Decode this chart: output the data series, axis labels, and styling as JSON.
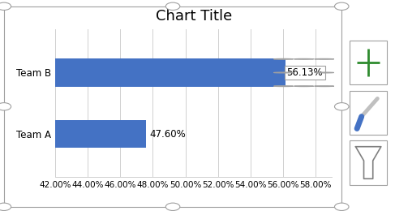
{
  "title": "Chart Title",
  "categories": [
    "Team A",
    "Team B"
  ],
  "values": [
    0.476,
    0.5613
  ],
  "labels": [
    "47.60%",
    "56.13%"
  ],
  "bar_color": "#4472C4",
  "xmin": 0.42,
  "xmax": 0.59,
  "xticks": [
    0.42,
    0.44,
    0.46,
    0.48,
    0.5,
    0.52,
    0.54,
    0.56,
    0.58
  ],
  "xtick_labels": [
    "42.00%",
    "44.00%",
    "46.00%",
    "48.00%",
    "50.00%",
    "52.00%",
    "54.00%",
    "56.00%",
    "58.00%"
  ],
  "background_color": "#ffffff",
  "grid_color": "#d0d0d0",
  "border_color": "#a0a0a0",
  "title_fontsize": 13,
  "label_fontsize": 8.5,
  "tick_fontsize": 7.5,
  "bar_height": 0.45,
  "selected_bar_index": 1,
  "label_box_color": "#ffffff",
  "label_box_edge": "#a0a0a0",
  "handle_color": "#ffffff",
  "handle_edge": "#a0a0a0",
  "icon_plus_color": "#2e8b2e",
  "icon_brush_color": "#4472C4",
  "icon_filter_color": "#808080"
}
